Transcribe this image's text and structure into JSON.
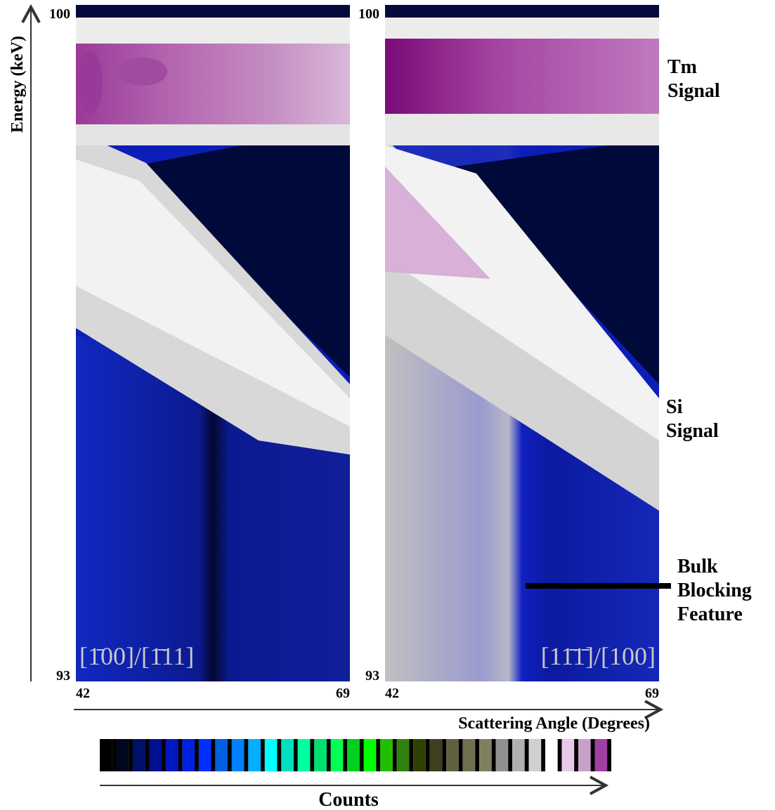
{
  "panels": [
    {
      "label": "[1̄00]/[1̄11]",
      "y_top": "100",
      "y_bottom": "93",
      "x_left": "42",
      "x_right": "69"
    },
    {
      "label": "[11̄1̄]/[100]",
      "y_top": "100",
      "y_bottom": "93",
      "x_left": "42",
      "x_right": "69"
    }
  ],
  "y_axis_title": "Energy (keV)",
  "x_axis_title": "Scattering Angle (Degrees)",
  "colorbar_title": "Counts",
  "annotations": [
    {
      "lines": [
        "Tm",
        "Signal"
      ]
    },
    {
      "lines": [
        "Si",
        "Signal"
      ]
    },
    {
      "lines": [
        "Bulk",
        "Blocking",
        "Feature"
      ]
    }
  ]
}
